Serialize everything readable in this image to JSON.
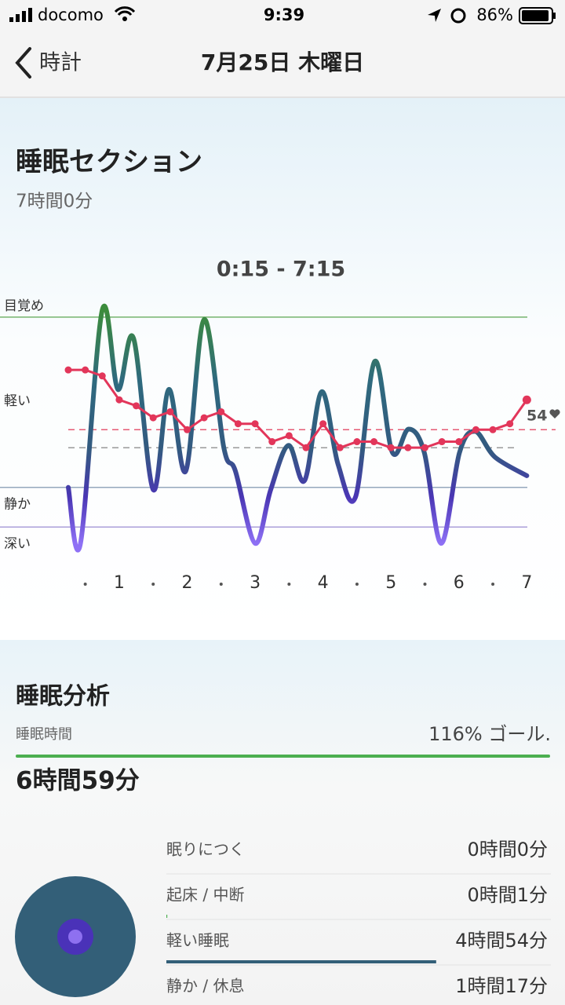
{
  "status_bar": {
    "carrier": "docomo",
    "time": "9:39",
    "battery": "86%"
  },
  "nav": {
    "back": "時計",
    "title": "7月25日 木曜日"
  },
  "section": {
    "title": "睡眠セクション",
    "duration": "7時間0分"
  },
  "chart_data": {
    "type": "line",
    "title": "0:15 - 7:15",
    "xlim": [
      0.25,
      7.25
    ],
    "xticks": [
      1,
      2,
      3,
      4,
      5,
      6,
      7
    ],
    "ylim": [
      35,
      74
    ],
    "y2lim": [
      0,
      100
    ],
    "y2ticks": [
      {
        "value": 97,
        "label": "目覚め",
        "color": "#74b46e"
      },
      {
        "value": 61,
        "label": "軽い"
      },
      {
        "value": 24,
        "label": "静か",
        "color": "#95a8bd"
      },
      {
        "value": 7,
        "label": "深い",
        "color": "#ab9fd9"
      }
    ],
    "average_heart_rate": 54,
    "average_color": "#e55a74",
    "y2_reference": 41,
    "y2_reference_color": "#999999",
    "series": [
      {
        "axis": "y2",
        "x": [
          0.25,
          0.43,
          0.75,
          0.98,
          1.21,
          1.5,
          1.73,
          1.98,
          2.25,
          2.54,
          2.71,
          3.0,
          3.23,
          3.49,
          3.73,
          3.98,
          4.22,
          4.48,
          4.76,
          5.02,
          5.26,
          5.49,
          5.74,
          6.01,
          6.24,
          6.53,
          7.0
        ],
        "values": [
          24,
          0,
          100,
          66,
          88,
          23,
          66,
          31,
          96,
          41,
          31,
          0,
          23,
          42,
          27,
          65,
          34,
          20,
          78,
          39,
          49,
          39,
          0,
          39,
          48,
          37,
          29
        ]
      },
      {
        "axis": "y",
        "color": "#e2365a",
        "x": [
          0.25,
          0.5,
          0.75,
          1.0,
          1.25,
          1.5,
          1.75,
          2.0,
          2.25,
          2.5,
          2.75,
          3.0,
          3.25,
          3.5,
          3.75,
          4.0,
          4.25,
          4.5,
          4.75,
          5.0,
          5.25,
          5.5,
          5.75,
          6.0,
          6.25,
          6.5,
          6.75,
          7.0
        ],
        "values": [
          64,
          64,
          63,
          59,
          58,
          56,
          57,
          54,
          56,
          57,
          55,
          55,
          52,
          53,
          51,
          55,
          51,
          52,
          52,
          51,
          51,
          51,
          52,
          52,
          54,
          54,
          55,
          59
        ]
      }
    ]
  },
  "analysis": {
    "title": "睡眠分析",
    "label": "睡眠時間",
    "goal": "116% ゴール.",
    "total": "6時間59分",
    "total_minutes": 419,
    "stages": [
      {
        "label": "眠りにつく",
        "duration": "0時間0分",
        "minutes": 0,
        "color": "#9a9a9a"
      },
      {
        "label": "起床 / 中断",
        "duration": "0時間1分",
        "minutes": 1,
        "color": "#4caf50"
      },
      {
        "label": "軽い睡眠",
        "duration": "4時間54分",
        "minutes": 294,
        "color": "#335f78"
      },
      {
        "label": "静か / 休息",
        "duration": "1時間17分",
        "minutes": 77,
        "color": "#5b3fc4"
      }
    ]
  }
}
